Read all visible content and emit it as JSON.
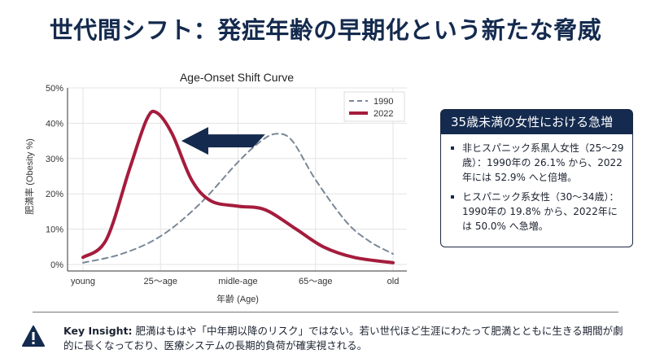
{
  "title": "世代間シフト：発症年齢の早期化という新たな脅威",
  "chart_data": {
    "type": "line",
    "title": "Age-Onset Shift Curve",
    "xlabel": "年齢 (Age)",
    "ylabel": "肥満率 (Obesity %)",
    "categories": [
      "young",
      "25〜age",
      "midle-age",
      "65〜age",
      "old"
    ],
    "yticks": [
      "0%",
      "10%",
      "20%",
      "30%",
      "40%",
      "50%"
    ],
    "ylim": [
      0,
      50
    ],
    "grid": true,
    "legend": "top-right",
    "series": [
      {
        "name": "1990",
        "style": "dashed",
        "color": "#7a8898",
        "x": [
          0,
          0.5,
          1,
          1.5,
          2,
          2.3,
          2.5,
          2.7,
          3,
          3.4,
          3.7,
          4
        ],
        "y": [
          0.5,
          3,
          8,
          17,
          29,
          35,
          37,
          35,
          24,
          12,
          6.5,
          3
        ]
      },
      {
        "name": "2022",
        "style": "solid",
        "color": "#a51c3c",
        "x": [
          0,
          0.3,
          0.6,
          0.82,
          0.95,
          1.15,
          1.4,
          1.65,
          2,
          2.35,
          2.75,
          3.1,
          3.5,
          4
        ],
        "y": [
          2,
          7,
          27,
          41,
          43,
          37,
          24,
          18,
          16.5,
          15.5,
          10,
          5,
          2,
          0.5
        ]
      }
    ],
    "annotation": {
      "type": "arrow",
      "from": [
        2.35,
        35
      ],
      "to": [
        1.27,
        35
      ],
      "color": "#142a4e"
    }
  },
  "card": {
    "title": "35歳未満の女性における急増",
    "items": [
      "非ヒスパニック系黒人女性（25〜29歳）：1990年の 26.1% から、2022年には 52.9% へと倍増。",
      "ヒスパニック系女性（30〜34歳）：1990年の 19.8% から、2022年には 50.0% へ急増。"
    ]
  },
  "insight": {
    "label": "Key Insight:",
    "text": " 肥満はもはや「中年期以降のリスク」ではない。若い世代ほど生涯にわたって肥満とともに生きる期間が劇的に長くなっており、医療システムの長期的負荷が確実視される。"
  }
}
